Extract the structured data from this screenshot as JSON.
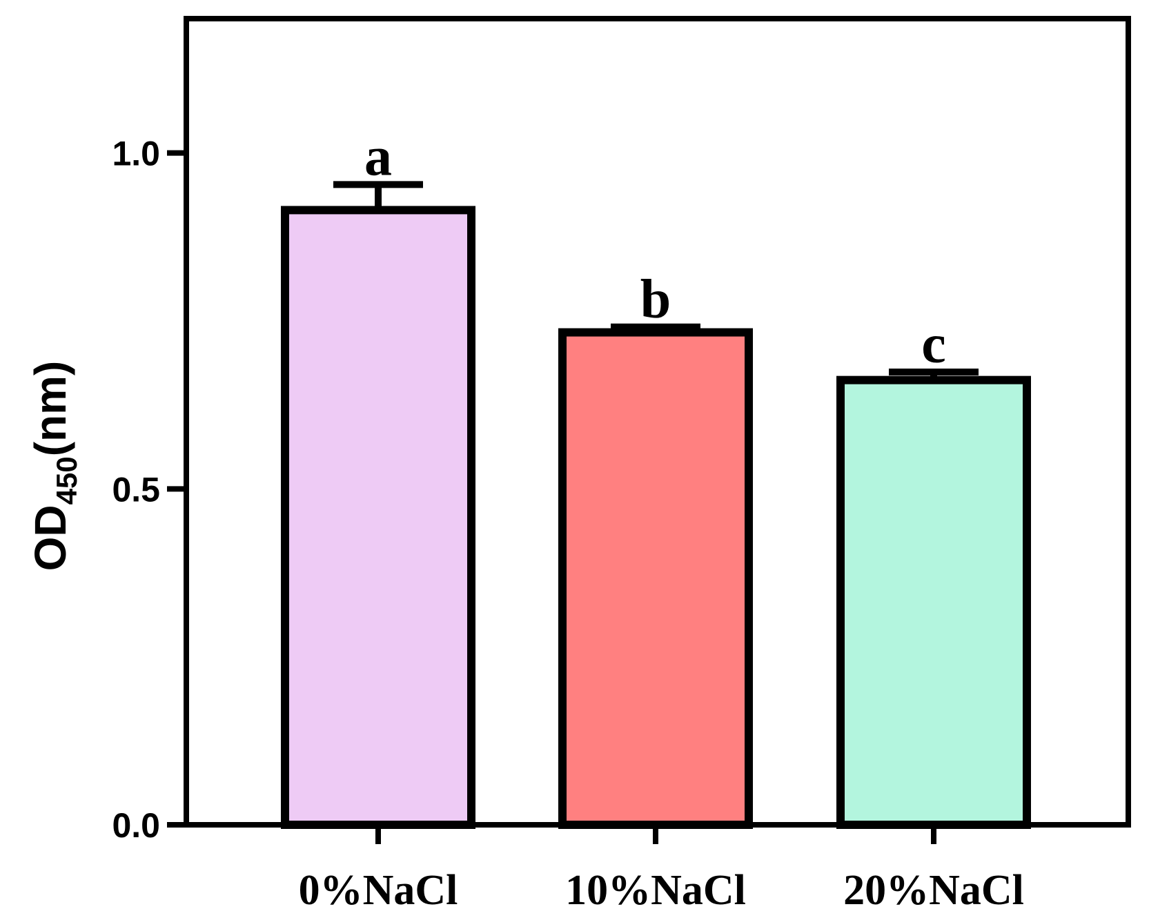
{
  "chart_data": {
    "type": "bar",
    "categories": [
      "0%NaCl",
      "10%NaCl",
      "20%NaCl"
    ],
    "values": [
      0.915,
      0.733,
      0.662
    ],
    "errors": [
      0.038,
      0.008,
      0.012
    ],
    "significance_letters": [
      "a",
      "b",
      "c"
    ],
    "colors": [
      "#EECBF5",
      "#FF8080",
      "#B3F5DE"
    ],
    "ylabel": {
      "main": "OD",
      "subscript": "450",
      "suffix": "(nm)"
    },
    "xlabel": "",
    "title": "",
    "ylim": [
      0,
      1.2
    ],
    "yticks": [
      0.0,
      0.5,
      1.0
    ],
    "ytick_labels": [
      "0.0",
      "0.5",
      "1.0"
    ],
    "grid": false
  }
}
